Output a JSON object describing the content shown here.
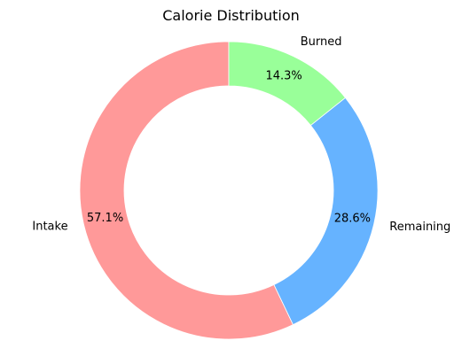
{
  "chart_data": {
    "type": "pie",
    "title": "Calorie Distribution",
    "donut": true,
    "start_angle_deg": 90,
    "direction": "counterclockwise",
    "slices": [
      {
        "label": "Intake",
        "value": 57.1,
        "pct_label": "57.1%",
        "color": "#ff9999"
      },
      {
        "label": "Remaining",
        "value": 28.6,
        "pct_label": "28.6%",
        "color": "#66b3ff"
      },
      {
        "label": "Burned",
        "value": 14.3,
        "pct_label": "14.3%",
        "color": "#99ff99"
      }
    ]
  }
}
